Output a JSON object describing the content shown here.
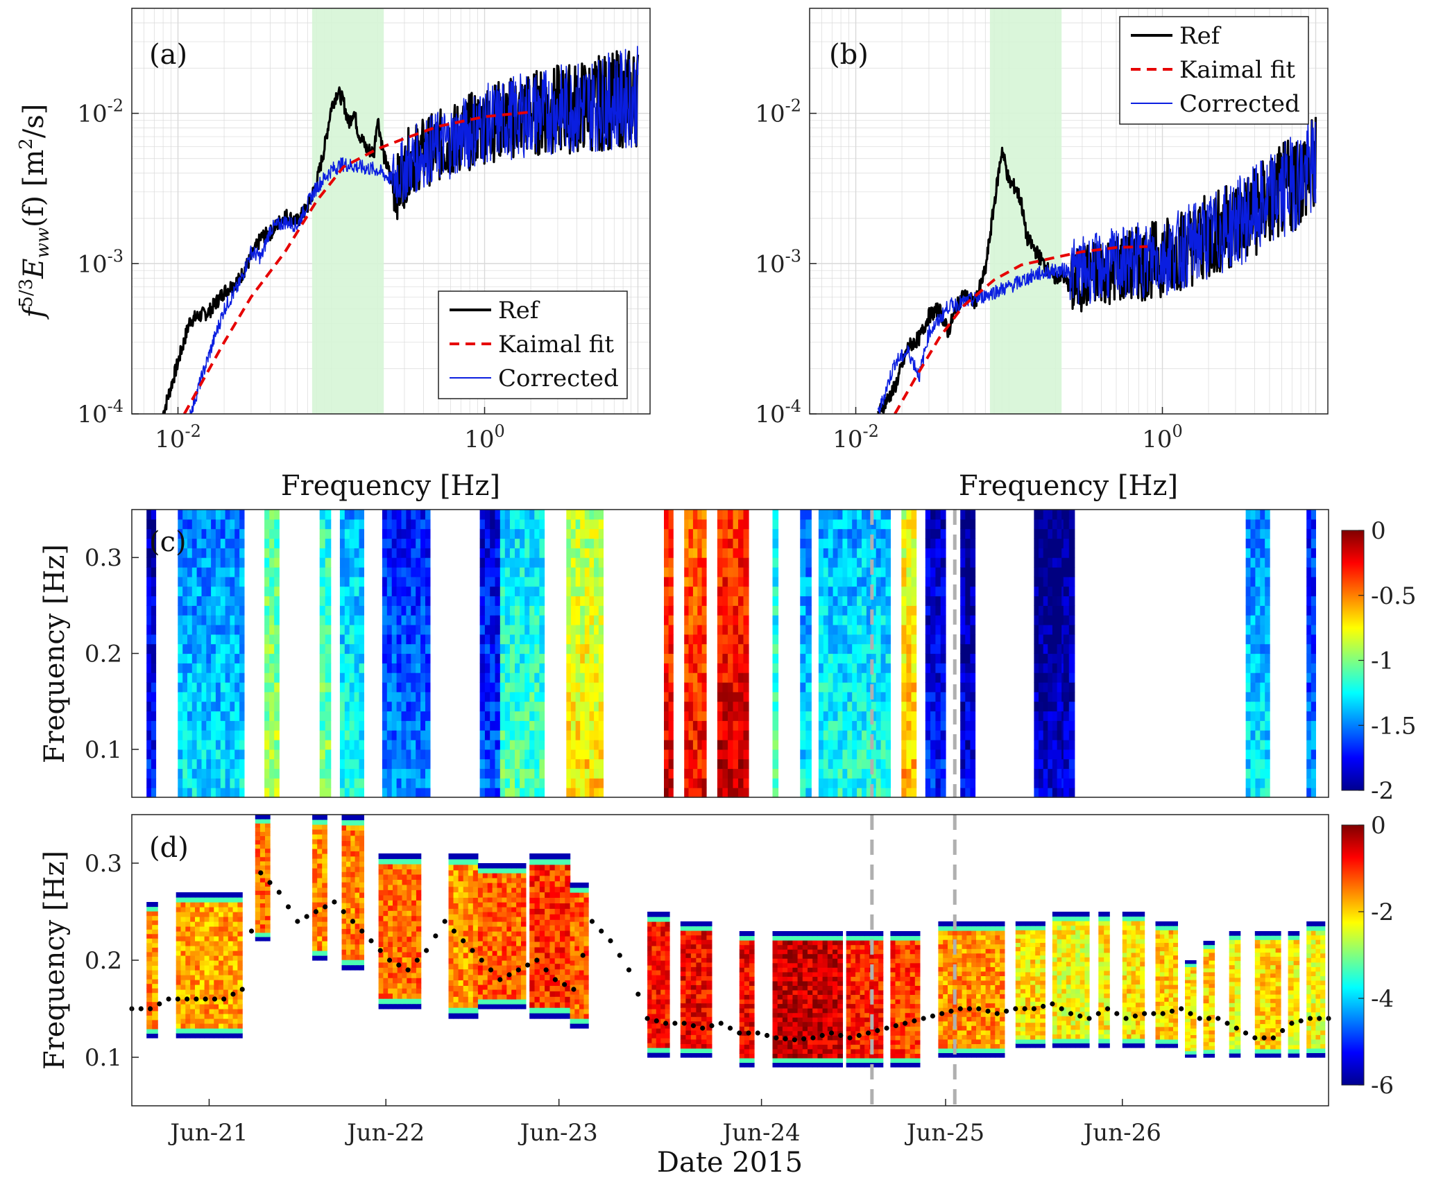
{
  "colors": {
    "ref": "#000000",
    "kaimal": "#e60000",
    "corrected": "#0a1ee0",
    "band": "#d6f5d6",
    "grid": "#d9d9d9",
    "dashed": "#b0b0b0",
    "dots": "#000000"
  },
  "chart_data": [
    {
      "id": "a",
      "type": "line",
      "panel_label": "(a)",
      "xlabel": "Frequency [Hz]",
      "ylabel": "f^{5/3} E_{ww}(f) [m²/s]",
      "ylabel_parts": {
        "f": "f",
        "exp": "5/3",
        "E": "E",
        "sub": "ww",
        "paren": "(f) [m",
        "sq": "2",
        "tail": "/s]"
      },
      "xscale": "log",
      "yscale": "log",
      "xlim": [
        0.005,
        12
      ],
      "ylim": [
        0.0001,
        0.05
      ],
      "x_ticks": [
        {
          "v": 0.01,
          "base": "10",
          "exp": "-2"
        },
        {
          "v": 1,
          "base": "10",
          "exp": "0"
        }
      ],
      "y_ticks": [
        {
          "v": 0.0001,
          "base": "10",
          "exp": "-4"
        },
        {
          "v": 0.001,
          "base": "10",
          "exp": "-3"
        },
        {
          "v": 0.01,
          "base": "10",
          "exp": "-2"
        }
      ],
      "band": [
        0.075,
        0.22
      ],
      "legend_position": "bottom-right",
      "series": [
        {
          "name": "Ref",
          "style": "solid",
          "x": [
            0.008,
            0.012,
            0.016,
            0.02,
            0.025,
            0.03,
            0.035,
            0.04,
            0.05,
            0.06,
            0.07,
            0.08,
            0.09,
            0.1,
            0.11,
            0.12,
            0.13,
            0.14,
            0.15,
            0.17,
            0.19,
            0.2,
            0.22,
            0.25,
            0.28,
            0.32,
            0.4,
            0.6,
            1,
            2,
            4,
            10
          ],
          "y": [
            0.0001,
            0.00042,
            0.00048,
            0.00065,
            0.00078,
            0.0011,
            0.0015,
            0.0016,
            0.0021,
            0.0019,
            0.0024,
            0.0034,
            0.0058,
            0.011,
            0.014,
            0.012,
            0.0085,
            0.0105,
            0.0075,
            0.0058,
            0.0055,
            0.0095,
            0.0052,
            0.0035,
            0.0032,
            0.0048,
            0.0055,
            0.0065,
            0.0085,
            0.01,
            0.011,
            0.013
          ]
        },
        {
          "name": "Kaimal fit",
          "style": "dashed",
          "x": [
            0.011,
            0.02,
            0.03,
            0.05,
            0.08,
            0.12,
            0.2,
            0.3,
            0.5,
            1,
            2
          ],
          "y": [
            0.0001,
            0.0003,
            0.0006,
            0.0012,
            0.0026,
            0.0044,
            0.0058,
            0.0068,
            0.0082,
            0.0095,
            0.0102
          ]
        },
        {
          "name": "Corrected",
          "style": "thin",
          "x": [
            0.012,
            0.016,
            0.02,
            0.025,
            0.03,
            0.035,
            0.04,
            0.05,
            0.06,
            0.07,
            0.08,
            0.1,
            0.12,
            0.15,
            0.2,
            0.25,
            0.3,
            0.4,
            0.6,
            1,
            2,
            4,
            10
          ],
          "y": [
            0.0001,
            0.00025,
            0.0005,
            0.00072,
            0.0012,
            0.0011,
            0.0017,
            0.0019,
            0.0018,
            0.0025,
            0.0032,
            0.0042,
            0.0046,
            0.0044,
            0.0042,
            0.0036,
            0.0043,
            0.0055,
            0.0065,
            0.0085,
            0.01,
            0.011,
            0.013
          ]
        }
      ]
    },
    {
      "id": "b",
      "type": "line",
      "panel_label": "(b)",
      "xlabel": "Frequency [Hz]",
      "ylabel": "",
      "xscale": "log",
      "yscale": "log",
      "xlim": [
        0.005,
        12
      ],
      "ylim": [
        0.0001,
        0.05
      ],
      "x_ticks": [
        {
          "v": 0.01,
          "base": "10",
          "exp": "-2"
        },
        {
          "v": 1,
          "base": "10",
          "exp": "0"
        }
      ],
      "y_ticks": [
        {
          "v": 0.0001,
          "base": "10",
          "exp": "-4"
        },
        {
          "v": 0.001,
          "base": "10",
          "exp": "-3"
        },
        {
          "v": 0.01,
          "base": "10",
          "exp": "-2"
        }
      ],
      "band": [
        0.075,
        0.22
      ],
      "legend_position": "top-right",
      "series": [
        {
          "name": "Ref",
          "style": "solid",
          "x": [
            0.014,
            0.018,
            0.022,
            0.026,
            0.03,
            0.035,
            0.04,
            0.045,
            0.05,
            0.06,
            0.07,
            0.08,
            0.09,
            0.1,
            0.11,
            0.12,
            0.13,
            0.15,
            0.18,
            0.2,
            0.22,
            0.25,
            0.3,
            0.4,
            0.6,
            1,
            2,
            4,
            10
          ],
          "y": [
            0.0001,
            0.00015,
            0.00028,
            0.00032,
            0.00045,
            0.0005,
            0.00035,
            0.0005,
            0.00062,
            0.00055,
            0.0009,
            0.0025,
            0.0058,
            0.0035,
            0.0032,
            0.0026,
            0.0015,
            0.0012,
            0.0009,
            0.0008,
            0.00085,
            0.0007,
            0.0008,
            0.0009,
            0.00095,
            0.0011,
            0.0015,
            0.0022,
            0.0045
          ]
        },
        {
          "name": "Kaimal fit",
          "style": "dashed",
          "x": [
            0.018,
            0.025,
            0.035,
            0.05,
            0.08,
            0.12,
            0.2,
            0.3,
            0.5,
            0.8
          ],
          "y": [
            0.0001,
            0.00018,
            0.00032,
            0.00052,
            0.00078,
            0.00098,
            0.0011,
            0.0012,
            0.00128,
            0.0013
          ]
        },
        {
          "name": "Corrected",
          "style": "thin",
          "x": [
            0.014,
            0.018,
            0.022,
            0.026,
            0.03,
            0.035,
            0.04,
            0.05,
            0.06,
            0.08,
            0.1,
            0.15,
            0.2,
            0.3,
            0.5,
            1,
            2,
            4,
            10
          ],
          "y": [
            0.0001,
            0.00022,
            0.00026,
            0.00018,
            0.00035,
            0.00042,
            0.00052,
            0.00055,
            0.00058,
            0.00065,
            0.0007,
            0.00085,
            0.0009,
            0.0009,
            0.001,
            0.0011,
            0.0015,
            0.0022,
            0.0045
          ]
        }
      ]
    },
    {
      "id": "c",
      "type": "heatmap",
      "panel_label": "(c)",
      "ylabel": "Frequency [Hz]",
      "xlim": [
        0,
        6.5
      ],
      "ylim": [
        0.05,
        0.35
      ],
      "y_ticks": [
        0.1,
        0.2,
        0.3
      ],
      "colorbar": {
        "range": [
          -2,
          0
        ],
        "ticks": [
          "0",
          "-0.5",
          "-1",
          "-1.5",
          "-2"
        ]
      },
      "columns": [
        {
          "x0": 0.08,
          "x1": 0.13,
          "v": -1.8
        },
        {
          "x0": 0.25,
          "x1": 0.61,
          "v": -1.4
        },
        {
          "x0": 0.72,
          "x1": 0.8,
          "v": -1.0
        },
        {
          "x0": 1.02,
          "x1": 1.08,
          "v": -1.1
        },
        {
          "x0": 1.13,
          "x1": 1.26,
          "v": -1.3
        },
        {
          "x0": 1.36,
          "x1": 1.62,
          "v": -1.6
        },
        {
          "x0": 1.89,
          "x1": 2.0,
          "v": -1.7
        },
        {
          "x0": 2.0,
          "x1": 2.24,
          "v": -1.2
        },
        {
          "x0": 2.36,
          "x1": 2.56,
          "v": -0.8
        },
        {
          "x0": 2.89,
          "x1": 2.94,
          "v": -0.3
        },
        {
          "x0": 3.0,
          "x1": 3.12,
          "v": -0.35
        },
        {
          "x0": 3.18,
          "x1": 3.35,
          "v": -0.25
        },
        {
          "x0": 3.48,
          "x1": 3.51,
          "v": -1.2
        },
        {
          "x0": 3.63,
          "x1": 3.69,
          "v": -1.4
        },
        {
          "x0": 3.73,
          "x1": 4.12,
          "v": -1.3
        },
        {
          "x0": 4.18,
          "x1": 4.26,
          "v": -0.7
        },
        {
          "x0": 4.31,
          "x1": 4.42,
          "v": -1.8
        },
        {
          "x0": 4.5,
          "x1": 4.58,
          "v": -1.9
        },
        {
          "x0": 4.9,
          "x1": 5.1,
          "v": -1.95
        },
        {
          "x0": 5.06,
          "x1": 5.12,
          "v": -1.9
        },
        {
          "x0": 6.05,
          "x1": 6.18,
          "v": -1.4
        },
        {
          "x0": 6.38,
          "x1": 6.43,
          "v": -1.6
        }
      ],
      "vlines": [
        4.02,
        4.47
      ]
    },
    {
      "id": "d",
      "type": "heatmap",
      "panel_label": "(d)",
      "ylabel": "Frequency [Hz]",
      "xlabel": "Date 2015",
      "xlim": [
        0,
        6.5
      ],
      "ylim": [
        0.05,
        0.35
      ],
      "y_ticks": [
        0.1,
        0.2,
        0.3
      ],
      "x_ticks": [
        {
          "v": 0.42,
          "label": "Jun-21"
        },
        {
          "v": 1.38,
          "label": "Jun-22"
        },
        {
          "v": 2.32,
          "label": "Jun-23"
        },
        {
          "v": 3.42,
          "label": "Jun-24"
        },
        {
          "v": 4.42,
          "label": "Jun-25"
        },
        {
          "v": 5.38,
          "label": "Jun-26"
        }
      ],
      "colorbar": {
        "range": [
          -6,
          0
        ],
        "ticks": [
          "0",
          "-2",
          "-4",
          "-6"
        ]
      },
      "columns": [
        {
          "x0": 0.08,
          "x1": 0.14,
          "lo": 0.12,
          "hi": 0.26,
          "v": -1.6
        },
        {
          "x0": 0.24,
          "x1": 0.6,
          "lo": 0.12,
          "hi": 0.27,
          "v": -1.7
        },
        {
          "x0": 0.67,
          "x1": 0.75,
          "lo": 0.22,
          "hi": 0.35,
          "v": -1.4
        },
        {
          "x0": 0.98,
          "x1": 1.06,
          "lo": 0.2,
          "hi": 0.35,
          "v": -1.6
        },
        {
          "x0": 1.14,
          "x1": 1.26,
          "lo": 0.19,
          "hi": 0.35,
          "v": -1.5
        },
        {
          "x0": 1.34,
          "x1": 1.57,
          "lo": 0.15,
          "hi": 0.31,
          "v": -1.4
        },
        {
          "x0": 1.72,
          "x1": 1.88,
          "lo": 0.14,
          "hi": 0.31,
          "v": -1.6
        },
        {
          "x0": 1.88,
          "x1": 2.14,
          "lo": 0.15,
          "hi": 0.3,
          "v": -1.3
        },
        {
          "x0": 2.16,
          "x1": 2.38,
          "lo": 0.14,
          "hi": 0.31,
          "v": -1.0
        },
        {
          "x0": 2.38,
          "x1": 2.48,
          "lo": 0.13,
          "hi": 0.28,
          "v": -1.3
        },
        {
          "x0": 2.8,
          "x1": 2.92,
          "lo": 0.1,
          "hi": 0.25,
          "v": -0.8
        },
        {
          "x0": 2.98,
          "x1": 3.15,
          "lo": 0.1,
          "hi": 0.24,
          "v": -0.7
        },
        {
          "x0": 3.3,
          "x1": 3.38,
          "lo": 0.09,
          "hi": 0.23,
          "v": -0.7
        },
        {
          "x0": 3.48,
          "x1": 3.86,
          "lo": 0.09,
          "hi": 0.23,
          "v": -0.4
        },
        {
          "x0": 3.88,
          "x1": 4.08,
          "lo": 0.09,
          "hi": 0.23,
          "v": -0.9
        },
        {
          "x0": 4.12,
          "x1": 4.28,
          "lo": 0.09,
          "hi": 0.23,
          "v": -1.1
        },
        {
          "x0": 4.38,
          "x1": 4.74,
          "lo": 0.1,
          "hi": 0.24,
          "v": -1.6
        },
        {
          "x0": 4.8,
          "x1": 4.96,
          "lo": 0.11,
          "hi": 0.24,
          "v": -2.1
        },
        {
          "x0": 5.0,
          "x1": 5.2,
          "lo": 0.11,
          "hi": 0.25,
          "v": -2.3
        },
        {
          "x0": 5.25,
          "x1": 5.31,
          "lo": 0.11,
          "hi": 0.25,
          "v": -2.2
        },
        {
          "x0": 5.38,
          "x1": 5.5,
          "lo": 0.11,
          "hi": 0.25,
          "v": -2.1
        },
        {
          "x0": 5.56,
          "x1": 5.68,
          "lo": 0.11,
          "hi": 0.24,
          "v": -2.0
        },
        {
          "x0": 5.72,
          "x1": 5.78,
          "lo": 0.1,
          "hi": 0.2,
          "v": -2.1
        },
        {
          "x0": 5.82,
          "x1": 5.88,
          "lo": 0.1,
          "hi": 0.22,
          "v": -2.0
        },
        {
          "x0": 5.96,
          "x1": 6.02,
          "lo": 0.1,
          "hi": 0.23,
          "v": -2.2
        },
        {
          "x0": 6.1,
          "x1": 6.24,
          "lo": 0.1,
          "hi": 0.23,
          "v": -2.0
        },
        {
          "x0": 6.28,
          "x1": 6.34,
          "lo": 0.1,
          "hi": 0.23,
          "v": -2.2
        },
        {
          "x0": 6.38,
          "x1": 6.48,
          "lo": 0.1,
          "hi": 0.24,
          "v": -2.3
        }
      ],
      "peak_dots": {
        "x": [
          0.0,
          0.1,
          0.2,
          0.3,
          0.4,
          0.5,
          0.6,
          0.7,
          0.8,
          0.9,
          1.0,
          1.1,
          1.2,
          1.3,
          1.4,
          1.5,
          1.6,
          1.7,
          1.8,
          1.9,
          2.0,
          2.1,
          2.2,
          2.3,
          2.4,
          2.5,
          2.6,
          2.7,
          2.8,
          2.9,
          3.0,
          3.1,
          3.2,
          3.3,
          3.4,
          3.5,
          3.6,
          3.7,
          3.8,
          3.9,
          4.0,
          4.1,
          4.2,
          4.3,
          4.4,
          4.5,
          4.6,
          4.7,
          4.8,
          4.9,
          5.0,
          5.1,
          5.2,
          5.3,
          5.4,
          5.5,
          5.6,
          5.7,
          5.8,
          5.9,
          6.0,
          6.1,
          6.2,
          6.3,
          6.4,
          6.5
        ],
        "y": [
          0.15,
          0.15,
          0.16,
          0.16,
          0.16,
          0.16,
          0.17,
          0.29,
          0.27,
          0.24,
          0.25,
          0.26,
          0.24,
          0.22,
          0.2,
          0.19,
          0.21,
          0.24,
          0.22,
          0.2,
          0.18,
          0.19,
          0.2,
          0.18,
          0.17,
          0.24,
          0.22,
          0.19,
          0.14,
          0.135,
          0.135,
          0.13,
          0.135,
          0.125,
          0.125,
          0.12,
          0.118,
          0.12,
          0.125,
          0.12,
          0.125,
          0.13,
          0.135,
          0.14,
          0.145,
          0.15,
          0.15,
          0.145,
          0.15,
          0.15,
          0.155,
          0.145,
          0.14,
          0.15,
          0.14,
          0.145,
          0.145,
          0.15,
          0.14,
          0.14,
          0.13,
          0.12,
          0.12,
          0.135,
          0.14,
          0.14
        ]
      },
      "vlines": [
        4.02,
        4.47
      ]
    }
  ]
}
